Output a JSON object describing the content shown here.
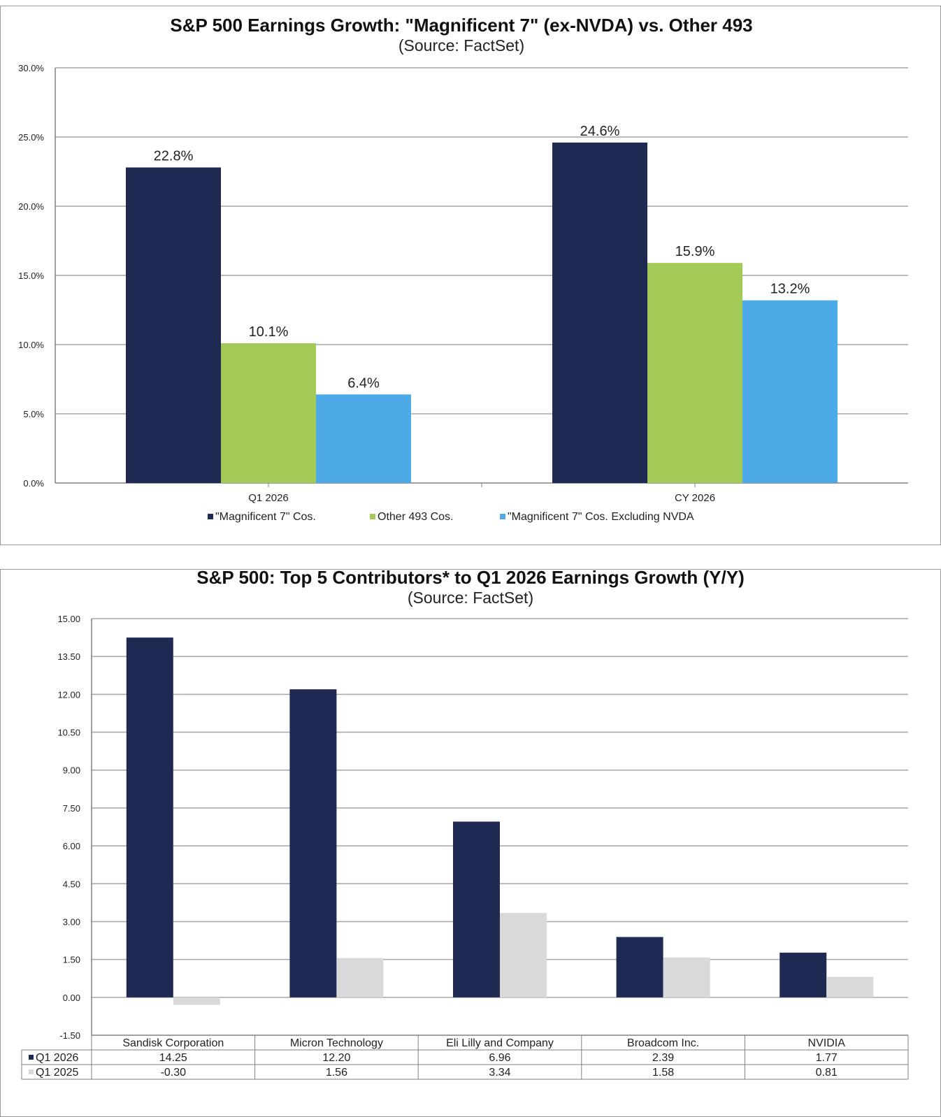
{
  "chart_data": [
    {
      "type": "bar",
      "title": "S&P 500 Earnings Growth: \"Magnificent 7\" (ex-NVDA)  vs. Other 493",
      "subtitle": "(Source: FactSet)",
      "categories": [
        "Q1 2026",
        "CY 2026"
      ],
      "series": [
        {
          "name": "\"Magnificent 7\" Cos.",
          "values": [
            22.8,
            24.6
          ],
          "labels": [
            "22.8%",
            "24.6%"
          ],
          "color": "#1e2a52"
        },
        {
          "name": "Other 493 Cos.",
          "values": [
            10.1,
            15.9
          ],
          "labels": [
            "10.1%",
            "15.9%"
          ],
          "color": "#a3c956"
        },
        {
          "name": "\"Magnificent 7\" Cos. Excluding NVDA",
          "values": [
            6.4,
            13.2
          ],
          "labels": [
            "6.4%",
            "13.2%"
          ],
          "color": "#4eaae6"
        }
      ],
      "yticks": [
        "0.0%",
        "5.0%",
        "10.0%",
        "15.0%",
        "20.0%",
        "25.0%",
        "30.0%"
      ],
      "ylim": [
        0,
        30
      ],
      "grid": true,
      "legend": "bottom"
    },
    {
      "type": "bar",
      "title": "S&P 500: Top 5 Contributors* to Q1 2026 Earnings Growth (Y/Y)",
      "subtitle": "(Source: FactSet)",
      "categories": [
        "Sandisk Corporation",
        "Micron Technology",
        "Eli Lilly and Company",
        "Broadcom Inc.",
        "NVIDIA"
      ],
      "series": [
        {
          "name": "Q1 2026",
          "values": [
            14.25,
            12.2,
            6.96,
            2.39,
            1.77
          ],
          "labels": [
            "14.25",
            "12.20",
            "6.96",
            "2.39",
            "1.77"
          ],
          "color": "#1e2a52"
        },
        {
          "name": "Q1 2025",
          "values": [
            -0.3,
            1.56,
            3.34,
            1.58,
            0.81
          ],
          "labels": [
            "-0.30",
            "1.56",
            "3.34",
            "1.58",
            "0.81"
          ],
          "color": "#d9d9d9"
        }
      ],
      "yticks": [
        "-1.50",
        "0.00",
        "1.50",
        "3.00",
        "4.50",
        "6.00",
        "7.50",
        "9.00",
        "10.50",
        "12.00",
        "13.50",
        "15.00"
      ],
      "ylim": [
        -1.5,
        15
      ],
      "grid": true,
      "legend": "data table"
    }
  ]
}
